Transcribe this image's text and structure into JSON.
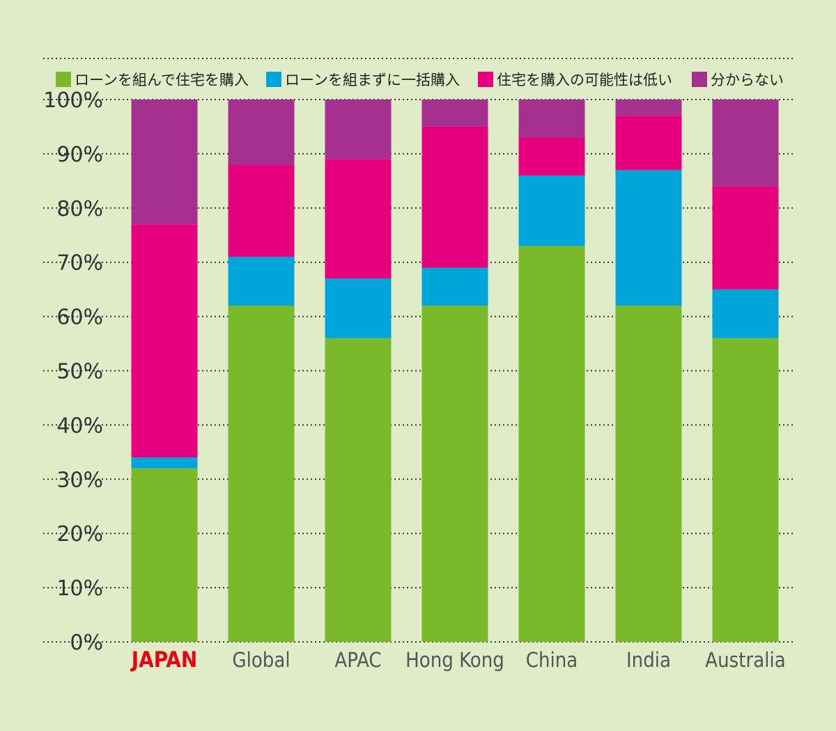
{
  "chart_data": {
    "type": "bar",
    "stacked": true,
    "categories": [
      "JAPAN",
      "Global",
      "APAC",
      "Hong Kong",
      "China",
      "India",
      "Australia"
    ],
    "highlight_category": "JAPAN",
    "highlight_color": "#e60012",
    "series": [
      {
        "name": "ローンを組んで住宅を購入",
        "color": "#7aba2a",
        "values": [
          32,
          62,
          56,
          62,
          73,
          62,
          56
        ]
      },
      {
        "name": "ローンを組まずに一括購入",
        "color": "#00a6d9",
        "values": [
          2,
          9,
          11,
          7,
          13,
          25,
          9
        ]
      },
      {
        "name": "住宅を購入の可能性は低い",
        "color": "#e6007e",
        "values": [
          43,
          17,
          22,
          26,
          7,
          10,
          19
        ]
      },
      {
        "name": "分からない",
        "color": "#a5308f",
        "values": [
          23,
          12,
          11,
          5,
          7,
          3,
          16
        ]
      }
    ],
    "ylim": [
      0,
      100
    ],
    "yticks": [
      0,
      10,
      20,
      30,
      40,
      50,
      60,
      70,
      80,
      90,
      100
    ],
    "ytick_labels": [
      "0%",
      "10%",
      "20%",
      "30%",
      "40%",
      "50%",
      "60%",
      "70%",
      "80%",
      "90%",
      "100%"
    ],
    "grid": true,
    "legend_position": "top",
    "background_color": "#e0ecc8"
  }
}
